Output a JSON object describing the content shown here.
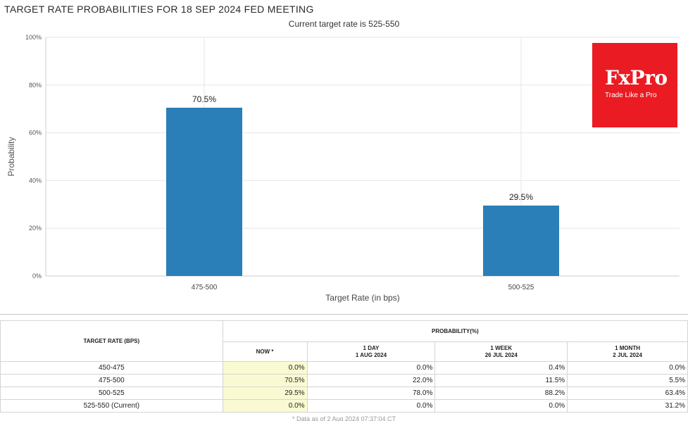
{
  "header": {
    "title": "TARGET RATE PROBABILITIES FOR 18 SEP 2024 FED MEETING",
    "subtitle": "Current target rate is 525-550"
  },
  "logo": {
    "brand": "FxPro",
    "tagline": "Trade Like a Pro",
    "color": "#ea1b22"
  },
  "chart_data": {
    "type": "bar",
    "title": "TARGET RATE PROBABILITIES FOR 18 SEP 2024 FED MEETING",
    "subtitle": "Current target rate is 525-550",
    "categories": [
      "475-500",
      "500-525"
    ],
    "values": [
      70.5,
      29.5
    ],
    "value_labels": [
      "70.5%",
      "29.5%"
    ],
    "xlabel": "Target Rate (in bps)",
    "ylabel": "Probability",
    "ylim": [
      0,
      100
    ],
    "yticks": [
      0,
      20,
      40,
      60,
      80,
      100
    ],
    "ytick_labels": [
      "0%",
      "20%",
      "40%",
      "60%",
      "80%",
      "100%"
    ],
    "grid": true,
    "bar_color": "#2a7fb8"
  },
  "table": {
    "rate_header": "TARGET RATE (BPS)",
    "prob_header": "PROBABILITY(%)",
    "columns": [
      {
        "line1": "NOW *",
        "line2": ""
      },
      {
        "line1": "1 DAY",
        "line2": "1 AUG 2024"
      },
      {
        "line1": "1 WEEK",
        "line2": "26 JUL 2024"
      },
      {
        "line1": "1 MONTH",
        "line2": "2 JUL 2024"
      }
    ],
    "rows": [
      {
        "rate": "450-475",
        "values": [
          "0.0%",
          "0.0%",
          "0.4%",
          "0.0%"
        ]
      },
      {
        "rate": "475-500",
        "values": [
          "70.5%",
          "22.0%",
          "11.5%",
          "5.5%"
        ]
      },
      {
        "rate": "500-525",
        "values": [
          "29.5%",
          "78.0%",
          "88.2%",
          "63.4%"
        ]
      },
      {
        "rate": "525-550 (Current)",
        "values": [
          "0.0%",
          "0.0%",
          "0.0%",
          "31.2%"
        ]
      }
    ],
    "now_highlight": "#fafad2"
  },
  "footnote": "* Data as of 2 Aug 2024 07:37:04 CT"
}
